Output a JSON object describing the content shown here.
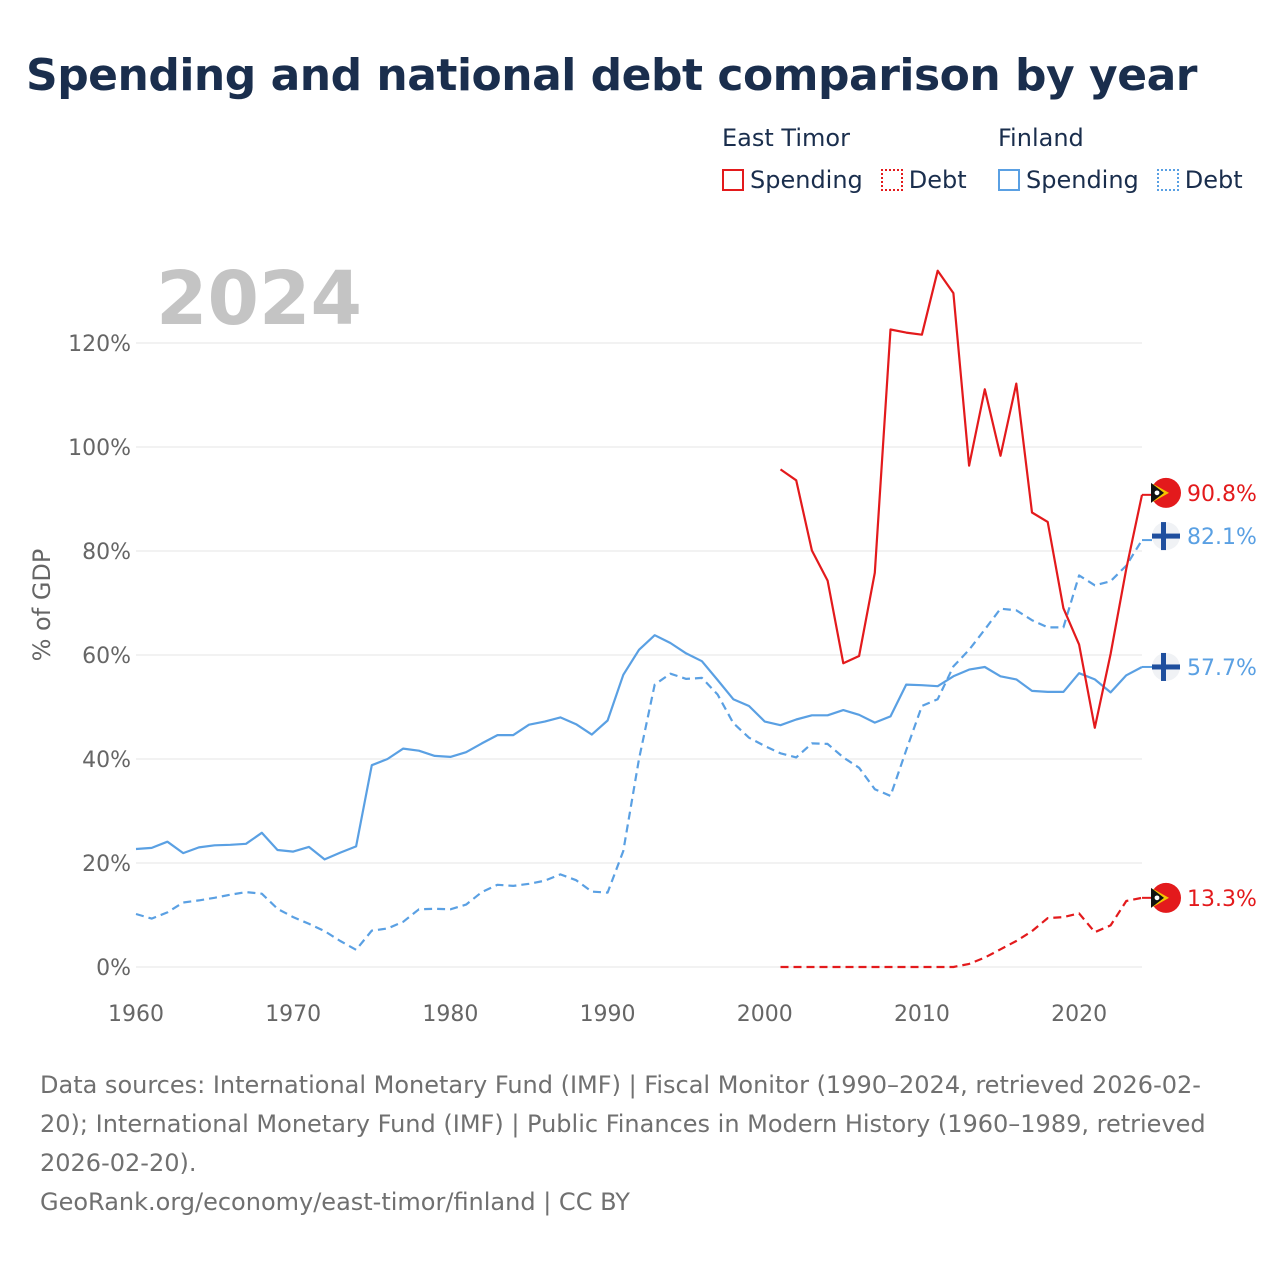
{
  "title": "Spending and national debt comparison by year",
  "legend": {
    "groups": [
      {
        "country": "East Timor",
        "items": [
          {
            "label": "Spending",
            "color": "#e31a1c",
            "style": "solid"
          },
          {
            "label": "Debt",
            "color": "#e31a1c",
            "style": "dotted"
          }
        ]
      },
      {
        "country": "Finland",
        "items": [
          {
            "label": "Spending",
            "color": "#5aa0e3",
            "style": "solid"
          },
          {
            "label": "Debt",
            "color": "#5aa0e3",
            "style": "dotted"
          }
        ]
      }
    ]
  },
  "footer": {
    "sources": "Data sources: International Monetary Fund (IMF) | Fiscal Monitor (1990–2024, retrieved 2026-02-20); International Monetary Fund (IMF) | Public Finances in Modern History (1960–1989, retrieved 2026-02-20).",
    "credit": "GeoRank.org/economy/east-timor/finland | CC BY"
  },
  "chart_data": {
    "type": "line",
    "title": "Spending and national debt comparison by year",
    "year_label": "2024",
    "xlabel": "",
    "ylabel": "% of GDP",
    "xlim": [
      1960,
      2024
    ],
    "ylim": [
      0,
      120
    ],
    "x_ticks": [
      1960,
      1970,
      1980,
      1990,
      2000,
      2010,
      2020
    ],
    "y_ticks": [
      0,
      20,
      40,
      60,
      80,
      100,
      120
    ],
    "y_tick_labels": [
      "0%",
      "20%",
      "40%",
      "60%",
      "80%",
      "100%",
      "120%"
    ],
    "grid": true,
    "series": [
      {
        "name": "Finland Spending",
        "country": "Finland",
        "metric": "Spending",
        "color": "#5aa0e3",
        "dash": "solid",
        "end_label": "57.7%",
        "end_flag": "finland",
        "x": [
          1960,
          1961,
          1962,
          1963,
          1964,
          1965,
          1966,
          1967,
          1968,
          1969,
          1970,
          1971,
          1972,
          1973,
          1974,
          1975,
          1976,
          1977,
          1978,
          1979,
          1980,
          1981,
          1982,
          1983,
          1984,
          1985,
          1986,
          1987,
          1988,
          1989,
          1990,
          1991,
          1992,
          1993,
          1994,
          1995,
          1996,
          1997,
          1998,
          1999,
          2000,
          2001,
          2002,
          2003,
          2004,
          2005,
          2006,
          2007,
          2008,
          2009,
          2010,
          2011,
          2012,
          2013,
          2014,
          2015,
          2016,
          2017,
          2018,
          2019,
          2020,
          2021,
          2022,
          2023,
          2024
        ],
        "values": [
          22.7,
          22.9,
          24.1,
          21.9,
          23.0,
          23.4,
          23.5,
          23.7,
          25.8,
          22.5,
          22.2,
          23.1,
          20.7,
          22.0,
          23.2,
          38.8,
          40.0,
          42.0,
          41.6,
          40.6,
          40.4,
          41.3,
          43.0,
          44.6,
          44.6,
          46.6,
          47.2,
          48.0,
          46.7,
          44.7,
          47.4,
          56.2,
          61.0,
          63.8,
          62.3,
          60.3,
          58.8,
          55.2,
          51.5,
          50.2,
          47.2,
          46.5,
          47.6,
          48.4,
          48.4,
          49.4,
          48.5,
          47.0,
          48.2,
          54.3,
          54.2,
          54.0,
          55.9,
          57.2,
          57.7,
          55.9,
          55.3,
          53.1,
          52.9,
          52.9,
          56.5,
          55.3,
          52.8,
          56.1,
          57.7
        ]
      },
      {
        "name": "Finland Debt",
        "country": "Finland",
        "metric": "Debt",
        "color": "#5aa0e3",
        "dash": "dashed",
        "end_label": "82.1%",
        "end_flag": "finland",
        "x": [
          1960,
          1961,
          1962,
          1963,
          1964,
          1965,
          1966,
          1967,
          1968,
          1969,
          1970,
          1971,
          1972,
          1973,
          1974,
          1975,
          1976,
          1977,
          1978,
          1979,
          1980,
          1981,
          1982,
          1983,
          1984,
          1985,
          1986,
          1987,
          1988,
          1989,
          1990,
          1991,
          1992,
          1993,
          1994,
          1995,
          1996,
          1997,
          1998,
          1999,
          2000,
          2001,
          2002,
          2003,
          2004,
          2005,
          2006,
          2007,
          2008,
          2009,
          2010,
          2011,
          2012,
          2013,
          2014,
          2015,
          2016,
          2017,
          2018,
          2019,
          2020,
          2021,
          2022,
          2023,
          2024
        ],
        "values": [
          10.2,
          9.3,
          10.5,
          12.4,
          12.8,
          13.3,
          13.9,
          14.4,
          14.1,
          11.2,
          9.6,
          8.3,
          6.9,
          5.0,
          3.3,
          7.0,
          7.4,
          8.7,
          11.1,
          11.2,
          11.1,
          12.0,
          14.4,
          15.8,
          15.6,
          16.0,
          16.6,
          17.8,
          16.7,
          14.5,
          14.3,
          22.3,
          40.0,
          54.3,
          56.4,
          55.4,
          55.6,
          52.4,
          46.9,
          44.1,
          42.5,
          41.1,
          40.3,
          43.0,
          42.9,
          40.3,
          38.3,
          34.2,
          32.9,
          41.7,
          50.2,
          51.5,
          57.8,
          61.0,
          64.9,
          68.9,
          68.6,
          66.7,
          65.3,
          65.3,
          75.3,
          73.4,
          74.2,
          77.2,
          82.1
        ]
      },
      {
        "name": "East Timor Spending",
        "country": "East Timor",
        "metric": "Spending",
        "color": "#e31a1c",
        "dash": "solid",
        "end_label": "90.8%",
        "end_flag": "east-timor",
        "x": [
          2001,
          2002,
          2003,
          2004,
          2005,
          2006,
          2007,
          2008,
          2009,
          2010,
          2011,
          2012,
          2013,
          2014,
          2015,
          2016,
          2017,
          2018,
          2019,
          2020,
          2021,
          2022,
          2023,
          2024
        ],
        "values": [
          95.7,
          93.6,
          80.1,
          74.3,
          58.4,
          59.8,
          75.8,
          122.6,
          122.0,
          121.6,
          133.9,
          129.6,
          96.4,
          111.1,
          98.3,
          112.2,
          87.4,
          85.6,
          69.0,
          62.0,
          46.0,
          60.2,
          76.6,
          90.8
        ]
      },
      {
        "name": "East Timor Debt",
        "country": "East Timor",
        "metric": "Debt",
        "color": "#e31a1c",
        "dash": "dashed",
        "end_label": "13.3%",
        "end_flag": "east-timor",
        "x": [
          2001,
          2002,
          2003,
          2004,
          2005,
          2006,
          2007,
          2008,
          2009,
          2010,
          2011,
          2012,
          2013,
          2014,
          2015,
          2016,
          2017,
          2018,
          2019,
          2020,
          2021,
          2022,
          2023,
          2024
        ],
        "values": [
          0,
          0,
          0,
          0,
          0,
          0,
          0,
          0,
          0,
          0,
          0,
          0,
          0.6,
          1.8,
          3.4,
          5.0,
          6.9,
          9.4,
          9.6,
          10.3,
          6.7,
          8.0,
          12.7,
          13.3
        ]
      }
    ]
  }
}
